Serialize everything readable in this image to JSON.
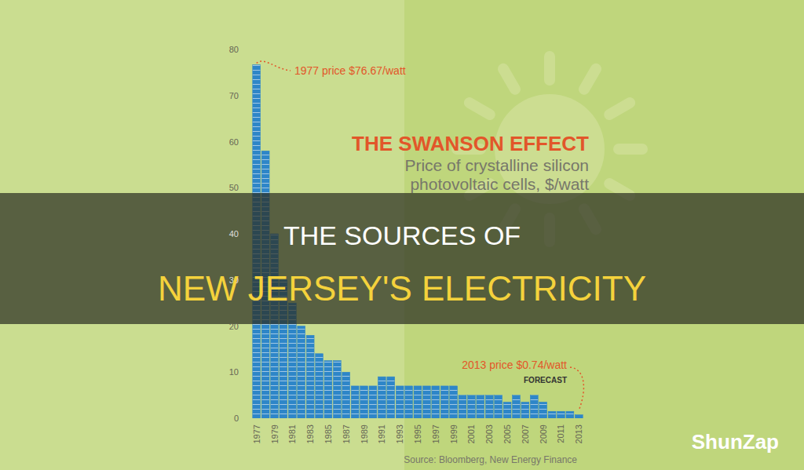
{
  "chart_data": {
    "type": "bar",
    "title": "THE SWANSON EFFECT",
    "subtitle": "Price of crystalline silicon photovoltaic cells, $/watt",
    "categories": [
      "1977",
      null,
      "1979",
      null,
      "1981",
      null,
      "1983",
      null,
      "1985",
      null,
      "1987",
      null,
      "1989",
      null,
      "1991",
      null,
      "1993",
      null,
      "1995",
      null,
      "1997",
      null,
      "1999",
      null,
      "2001",
      null,
      "2003",
      null,
      "2005",
      null,
      "2007",
      null,
      "2009",
      null,
      "2011",
      null,
      "2013"
    ],
    "values": [
      76.67,
      58,
      40,
      30,
      25,
      20,
      18,
      14,
      12.5,
      12.5,
      10,
      7,
      7,
      7,
      9,
      9,
      7,
      7,
      7,
      7,
      7,
      7,
      7,
      5,
      5,
      5,
      5,
      5,
      3.5,
      5,
      3.5,
      5,
      3.5,
      1.5,
      1.5,
      1.5,
      0.74
    ],
    "color": "#2e86c8",
    "ylim": [
      0,
      80
    ],
    "yticks": [
      0,
      10,
      20,
      30,
      40,
      50,
      60,
      70,
      80
    ],
    "grid": false,
    "annotations": [
      "1977 price $76.67/watt",
      "2013 price $0.74/watt",
      "FORECAST"
    ],
    "source": "Source:  Bloomberg, New Energy Finance"
  },
  "banner": {
    "line1": "THE SOURCES OF",
    "line2": "NEW JERSEY'S ELECTRICITY",
    "watermark": "ShunZap"
  }
}
